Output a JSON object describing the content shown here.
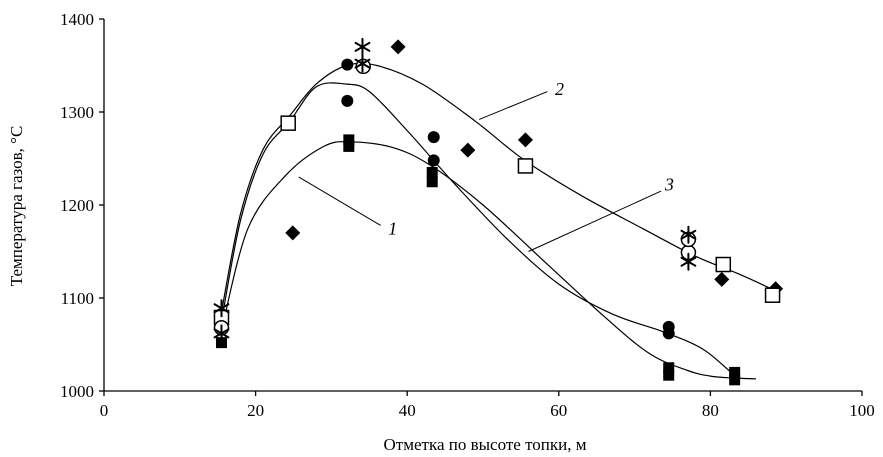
{
  "chart_data": {
    "type": "scatter",
    "title": "",
    "xlabel": "Отметка по высоте топки, м",
    "ylabel": "Температура газов, °С",
    "xlim": [
      0,
      100
    ],
    "ylim": [
      1000,
      1400
    ],
    "x_ticks": [
      "0",
      "20",
      "40",
      "60",
      "80",
      "100"
    ],
    "y_ticks": [
      "1000",
      "1100",
      "1200",
      "1300",
      "1400"
    ],
    "grid": false,
    "curves": [
      {
        "label": "1",
        "points": [
          [
            15.5,
            1065
          ],
          [
            19,
            1175
          ],
          [
            24,
            1232
          ],
          [
            29,
            1263
          ],
          [
            32.5,
            1268
          ],
          [
            38,
            1262
          ],
          [
            43,
            1243
          ],
          [
            50,
            1200
          ],
          [
            58,
            1140
          ],
          [
            66,
            1080
          ],
          [
            72,
            1040
          ],
          [
            77,
            1022
          ],
          [
            80,
            1016
          ],
          [
            83,
            1014
          ],
          [
            86,
            1013
          ]
        ]
      },
      {
        "label": "2",
        "points": [
          [
            15.5,
            1085
          ],
          [
            18,
            1190
          ],
          [
            21,
            1260
          ],
          [
            24.5,
            1296
          ],
          [
            28,
            1330
          ],
          [
            32,
            1350
          ],
          [
            36,
            1350
          ],
          [
            42,
            1330
          ],
          [
            49,
            1290
          ],
          [
            55.5,
            1248
          ],
          [
            63,
            1210
          ],
          [
            71,
            1175
          ],
          [
            78,
            1145
          ],
          [
            84,
            1125
          ],
          [
            88,
            1110
          ]
        ]
      },
      {
        "label": "3",
        "points": [
          [
            15.5,
            1075
          ],
          [
            18,
            1183
          ],
          [
            21,
            1255
          ],
          [
            24.5,
            1290
          ],
          [
            28,
            1327
          ],
          [
            32,
            1330
          ],
          [
            35,
            1322
          ],
          [
            40,
            1280
          ],
          [
            46,
            1225
          ],
          [
            53,
            1165
          ],
          [
            60,
            1115
          ],
          [
            67,
            1083
          ],
          [
            74,
            1063
          ],
          [
            79,
            1045
          ],
          [
            83,
            1018
          ]
        ]
      }
    ],
    "curve_label_anchors": [
      {
        "label": "1",
        "line": [
          [
            25.7,
            1230
          ],
          [
            36.5,
            1178
          ]
        ],
        "text": [
          37.5,
          1175
        ]
      },
      {
        "label": "2",
        "line": [
          [
            49.5,
            1292
          ],
          [
            58.5,
            1322
          ]
        ],
        "text": [
          59.5,
          1325
        ]
      },
      {
        "label": "3",
        "line": [
          [
            56,
            1150
          ],
          [
            73.5,
            1215
          ]
        ],
        "text": [
          74,
          1222
        ]
      }
    ],
    "series": [
      {
        "marker": "filled-square",
        "points": [
          [
            15.5,
            1052
          ],
          [
            32.3,
            1263
          ],
          [
            32.3,
            1270
          ],
          [
            43.3,
            1225
          ],
          [
            43.3,
            1235
          ],
          [
            74.5,
            1017
          ],
          [
            74.5,
            1025
          ],
          [
            83.2,
            1012
          ],
          [
            83.2,
            1020
          ]
        ]
      },
      {
        "marker": "filled-circle",
        "points": [
          [
            32.1,
            1351
          ],
          [
            32.1,
            1312
          ],
          [
            43.5,
            1273
          ],
          [
            43.5,
            1248
          ],
          [
            74.5,
            1069
          ],
          [
            74.5,
            1062
          ]
        ]
      },
      {
        "marker": "filled-diamond",
        "points": [
          [
            24.9,
            1170
          ],
          [
            38.8,
            1370
          ],
          [
            48,
            1259
          ],
          [
            55.6,
            1270
          ],
          [
            81.5,
            1120
          ],
          [
            88.6,
            1110
          ]
        ]
      },
      {
        "marker": "open-square",
        "points": [
          [
            15.5,
            1079
          ],
          [
            24.3,
            1288
          ],
          [
            55.6,
            1242
          ],
          [
            81.7,
            1136
          ],
          [
            88.2,
            1103
          ]
        ]
      },
      {
        "marker": "open-circle",
        "points": [
          [
            15.5,
            1068
          ],
          [
            34.2,
            1349
          ],
          [
            77.1,
            1149
          ],
          [
            77.1,
            1163
          ]
        ]
      },
      {
        "marker": "asterisk",
        "points": [
          [
            15.5,
            1089
          ],
          [
            15.5,
            1062
          ],
          [
            34.1,
            1370
          ],
          [
            34.1,
            1352
          ],
          [
            77.1,
            1168
          ],
          [
            77.1,
            1139
          ]
        ]
      }
    ]
  }
}
